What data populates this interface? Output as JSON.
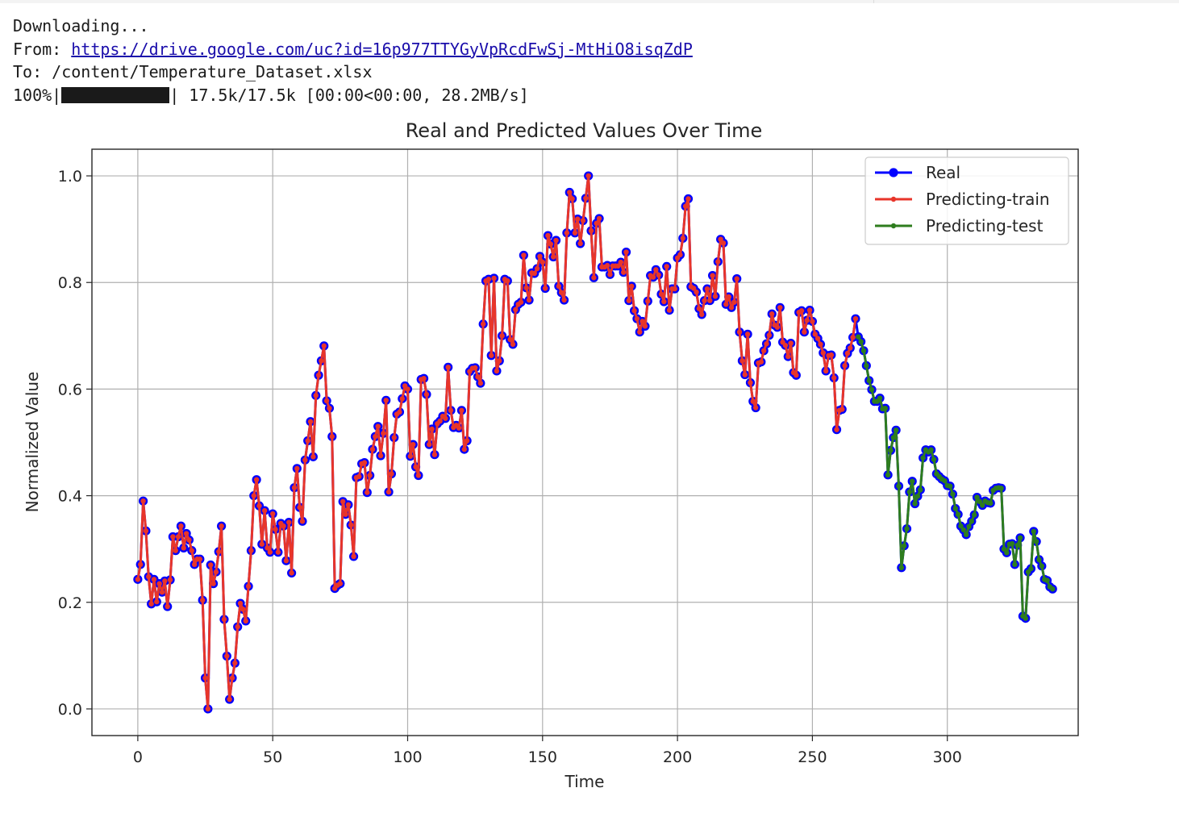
{
  "console": {
    "line1": "Downloading...",
    "from_label": "From: ",
    "from_url": "https://drive.google.com/uc?id=16p977TTYGyVpRcdFwSj-MtHiO8isqZdP",
    "to_line": "To: /content/Temperature_Dataset.xlsx",
    "progress_percent": "100%|",
    "progress_fraction": 1.0,
    "progress_tail": "| 17.5k/17.5k [00:00<00:00, 28.2MB/s]"
  },
  "chart_data": {
    "type": "line",
    "title": "Real and Predicted Values Over Time",
    "xlabel": "Time",
    "ylabel": "Normalized Value",
    "xlim": [
      -17,
      348.5
    ],
    "ylim": [
      -0.05,
      1.05
    ],
    "xticks": [
      0,
      50,
      100,
      150,
      200,
      250,
      300
    ],
    "yticks": [
      0.0,
      0.2,
      0.4,
      0.6,
      0.8,
      1.0
    ],
    "xtick_labels": [
      "0",
      "50",
      "100",
      "150",
      "200",
      "250",
      "300"
    ],
    "ytick_labels": [
      "0.0",
      "0.2",
      "0.4",
      "0.6",
      "0.8",
      "1.0"
    ],
    "grid": true,
    "legend_position": "top-right",
    "colors": {
      "real": "#0000ff",
      "train": "#e8352a",
      "test": "#2e7d1e"
    },
    "series": [
      {
        "name": "Real",
        "x_start": 0,
        "values": [
          0.243,
          0.271,
          0.39,
          0.334,
          0.248,
          0.197,
          0.243,
          0.201,
          0.235,
          0.219,
          0.24,
          0.192,
          0.242,
          0.323,
          0.297,
          0.323,
          0.343,
          0.302,
          0.329,
          0.317,
          0.297,
          0.271,
          0.281,
          0.281,
          0.204,
          0.058,
          0.0,
          0.27,
          0.235,
          0.257,
          0.295,
          0.343,
          0.168,
          0.099,
          0.018,
          0.058,
          0.086,
          0.154,
          0.198,
          0.187,
          0.165,
          0.23,
          0.297,
          0.4,
          0.43,
          0.381,
          0.309,
          0.372,
          0.302,
          0.294,
          0.366,
          0.337,
          0.294,
          0.348,
          0.343,
          0.278,
          0.35,
          0.255,
          0.415,
          0.451,
          0.378,
          0.352,
          0.467,
          0.503,
          0.539,
          0.473,
          0.588,
          0.626,
          0.653,
          0.681,
          0.578,
          0.564,
          0.511,
          0.226,
          0.232,
          0.235,
          0.389,
          0.365,
          0.383,
          0.345,
          0.286,
          0.434,
          0.436,
          0.46,
          0.462,
          0.406,
          0.438,
          0.487,
          0.511,
          0.53,
          0.475,
          0.517,
          0.579,
          0.407,
          0.441,
          0.509,
          0.553,
          0.557,
          0.582,
          0.606,
          0.6,
          0.474,
          0.496,
          0.454,
          0.438,
          0.618,
          0.62,
          0.59,
          0.496,
          0.525,
          0.477,
          0.535,
          0.54,
          0.549,
          0.545,
          0.641,
          0.56,
          0.528,
          0.532,
          0.527,
          0.56,
          0.487,
          0.503,
          0.633,
          0.639,
          0.64,
          0.623,
          0.611,
          0.722,
          0.803,
          0.806,
          0.663,
          0.808,
          0.634,
          0.653,
          0.7,
          0.806,
          0.803,
          0.693,
          0.684,
          0.749,
          0.759,
          0.763,
          0.851,
          0.79,
          0.767,
          0.818,
          0.817,
          0.826,
          0.849,
          0.838,
          0.789,
          0.888,
          0.872,
          0.848,
          0.879,
          0.793,
          0.781,
          0.767,
          0.893,
          0.969,
          0.957,
          0.893,
          0.919,
          0.873,
          0.916,
          0.958,
          1.0,
          0.897,
          0.809,
          0.911,
          0.92,
          0.829,
          0.829,
          0.832,
          0.815,
          0.831,
          0.831,
          0.831,
          0.838,
          0.819,
          0.857,
          0.766,
          0.793,
          0.747,
          0.732,
          0.707,
          0.727,
          0.718,
          0.765,
          0.813,
          0.81,
          0.824,
          0.814,
          0.778,
          0.764,
          0.83,
          0.748,
          0.788,
          0.788,
          0.846,
          0.852,
          0.883,
          0.943,
          0.957,
          0.792,
          0.789,
          0.782,
          0.751,
          0.74,
          0.766,
          0.788,
          0.766,
          0.813,
          0.774,
          0.839,
          0.881,
          0.874,
          0.759,
          0.773,
          0.753,
          0.763,
          0.807,
          0.707,
          0.653,
          0.627,
          0.703,
          0.612,
          0.577,
          0.565,
          0.649,
          0.651,
          0.672,
          0.685,
          0.701,
          0.741,
          0.72,
          0.716,
          0.753,
          0.688,
          0.682,
          0.661,
          0.686,
          0.631,
          0.626,
          0.744,
          0.747,
          0.707,
          0.729,
          0.748,
          0.727,
          0.703,
          0.695,
          0.684,
          0.668,
          0.634,
          0.663,
          0.664,
          0.621,
          0.524,
          0.56,
          0.562,
          0.644,
          0.667,
          0.677,
          0.697,
          0.732,
          0.698,
          0.689,
          0.672,
          0.644,
          0.616,
          0.599,
          0.577,
          0.577,
          0.583,
          0.563,
          0.564,
          0.439,
          0.485,
          0.509,
          0.523,
          0.418,
          0.265,
          0.306,
          0.338,
          0.407,
          0.427,
          0.385,
          0.399,
          0.411,
          0.471,
          0.486,
          0.482,
          0.486,
          0.468,
          0.441,
          0.436,
          0.431,
          0.428,
          0.419,
          0.418,
          0.403,
          0.376,
          0.365,
          0.343,
          0.336,
          0.327,
          0.342,
          0.352,
          0.364,
          0.397,
          0.389,
          0.382,
          0.39,
          0.387,
          0.386,
          0.41,
          0.414,
          0.415,
          0.414,
          0.3,
          0.293,
          0.309,
          0.31,
          0.271,
          0.307,
          0.321,
          0.174,
          0.17,
          0.257,
          0.263,
          0.333,
          0.314,
          0.28,
          0.268,
          0.243,
          0.241,
          0.229,
          0.225
        ]
      },
      {
        "name": "Predicting-train",
        "x_start": 0,
        "values": [
          0.243,
          0.271,
          0.39,
          0.334,
          0.248,
          0.197,
          0.243,
          0.201,
          0.235,
          0.219,
          0.24,
          0.192,
          0.242,
          0.323,
          0.297,
          0.323,
          0.343,
          0.302,
          0.329,
          0.317,
          0.297,
          0.271,
          0.281,
          0.281,
          0.204,
          0.058,
          0.0,
          0.27,
          0.235,
          0.257,
          0.295,
          0.343,
          0.168,
          0.099,
          0.018,
          0.058,
          0.086,
          0.154,
          0.198,
          0.187,
          0.165,
          0.23,
          0.297,
          0.4,
          0.43,
          0.381,
          0.309,
          0.372,
          0.302,
          0.294,
          0.366,
          0.337,
          0.294,
          0.348,
          0.343,
          0.278,
          0.35,
          0.255,
          0.415,
          0.451,
          0.378,
          0.352,
          0.467,
          0.503,
          0.539,
          0.473,
          0.588,
          0.626,
          0.653,
          0.681,
          0.578,
          0.564,
          0.511,
          0.226,
          0.232,
          0.235,
          0.389,
          0.365,
          0.383,
          0.345,
          0.286,
          0.434,
          0.436,
          0.46,
          0.462,
          0.406,
          0.438,
          0.487,
          0.511,
          0.53,
          0.475,
          0.517,
          0.579,
          0.407,
          0.441,
          0.509,
          0.553,
          0.557,
          0.582,
          0.606,
          0.6,
          0.474,
          0.496,
          0.454,
          0.438,
          0.618,
          0.62,
          0.59,
          0.496,
          0.525,
          0.477,
          0.535,
          0.54,
          0.549,
          0.545,
          0.641,
          0.56,
          0.528,
          0.532,
          0.527,
          0.56,
          0.487,
          0.503,
          0.633,
          0.639,
          0.64,
          0.623,
          0.611,
          0.722,
          0.803,
          0.806,
          0.663,
          0.808,
          0.634,
          0.653,
          0.7,
          0.806,
          0.803,
          0.693,
          0.684,
          0.749,
          0.759,
          0.763,
          0.851,
          0.79,
          0.767,
          0.818,
          0.817,
          0.826,
          0.849,
          0.838,
          0.789,
          0.888,
          0.872,
          0.848,
          0.879,
          0.793,
          0.781,
          0.767,
          0.893,
          0.969,
          0.957,
          0.893,
          0.919,
          0.873,
          0.916,
          0.958,
          1.0,
          0.897,
          0.809,
          0.911,
          0.92,
          0.829,
          0.829,
          0.832,
          0.815,
          0.831,
          0.831,
          0.831,
          0.838,
          0.819,
          0.857,
          0.766,
          0.793,
          0.747,
          0.732,
          0.707,
          0.727,
          0.718,
          0.765,
          0.813,
          0.81,
          0.824,
          0.814,
          0.778,
          0.764,
          0.83,
          0.748,
          0.788,
          0.788,
          0.846,
          0.852,
          0.883,
          0.943,
          0.957,
          0.792,
          0.789,
          0.782,
          0.751,
          0.74,
          0.766,
          0.788,
          0.766,
          0.813,
          0.774,
          0.839,
          0.881,
          0.874,
          0.759,
          0.773,
          0.753,
          0.763,
          0.807,
          0.707,
          0.653,
          0.627,
          0.703,
          0.612,
          0.577,
          0.565,
          0.649,
          0.651,
          0.672,
          0.685,
          0.701,
          0.741,
          0.72,
          0.716,
          0.753,
          0.688,
          0.682,
          0.661,
          0.686,
          0.631,
          0.626,
          0.744,
          0.747,
          0.707,
          0.729,
          0.748,
          0.727,
          0.703,
          0.695,
          0.684,
          0.668,
          0.634,
          0.663,
          0.664,
          0.621,
          0.524,
          0.56,
          0.562,
          0.644,
          0.667,
          0.677,
          0.697,
          0.732
        ]
      },
      {
        "name": "Predicting-test",
        "x_start": 267,
        "values": [
          0.698,
          0.689,
          0.672,
          0.644,
          0.616,
          0.599,
          0.577,
          0.577,
          0.583,
          0.563,
          0.564,
          0.439,
          0.485,
          0.509,
          0.523,
          0.418,
          0.265,
          0.306,
          0.338,
          0.407,
          0.427,
          0.385,
          0.399,
          0.411,
          0.471,
          0.486,
          0.482,
          0.486,
          0.468,
          0.441,
          0.436,
          0.431,
          0.428,
          0.419,
          0.418,
          0.403,
          0.376,
          0.365,
          0.343,
          0.336,
          0.327,
          0.342,
          0.352,
          0.364,
          0.397,
          0.389,
          0.382,
          0.39,
          0.387,
          0.386,
          0.41,
          0.414,
          0.415,
          0.414,
          0.3,
          0.293,
          0.309,
          0.31,
          0.271,
          0.307,
          0.321,
          0.174,
          0.17,
          0.257,
          0.263,
          0.333,
          0.314,
          0.28,
          0.268,
          0.243,
          0.241,
          0.229,
          0.225
        ]
      }
    ]
  }
}
